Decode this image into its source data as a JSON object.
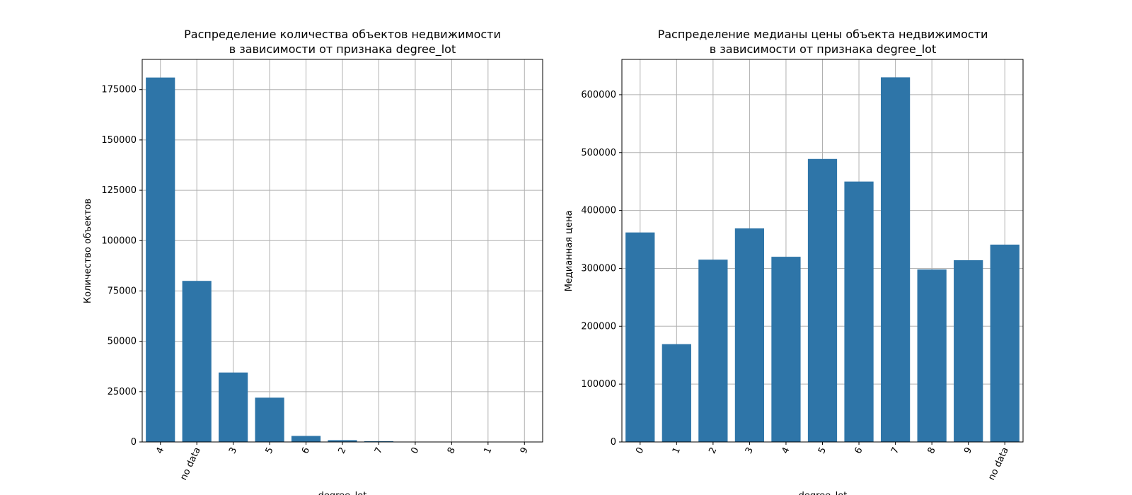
{
  "chart_data": [
    {
      "type": "bar",
      "title_line1": "Распределение количества объектов недвижимости",
      "title_line2": "в зависимости от признака degree_lot",
      "xlabel": "degree_lot",
      "ylabel": "Количество объектов",
      "categories": [
        "4",
        "no data",
        "3",
        "5",
        "6",
        "2",
        "7",
        "0",
        "8",
        "1",
        "9"
      ],
      "values": [
        181000,
        80000,
        34500,
        22000,
        3000,
        900,
        400,
        100,
        60,
        40,
        20
      ],
      "ylim": [
        0,
        190000
      ],
      "yticks": [
        0,
        25000,
        50000,
        75000,
        100000,
        125000,
        150000,
        175000
      ],
      "color": "#2e75a8",
      "grid": true
    },
    {
      "type": "bar",
      "title_line1": "Распределение медианы цены объекта недвижимости",
      "title_line2": "в зависимости от признака degree_lot",
      "xlabel": "degree_lot",
      "ylabel": "Медианная цена",
      "categories": [
        "0",
        "1",
        "2",
        "3",
        "4",
        "5",
        "6",
        "7",
        "8",
        "9",
        "no data"
      ],
      "values": [
        362000,
        169000,
        315000,
        369000,
        320000,
        489000,
        450000,
        630000,
        298000,
        314000,
        341000
      ],
      "ylim": [
        0,
        661000
      ],
      "yticks": [
        0,
        100000,
        200000,
        300000,
        400000,
        500000,
        600000
      ],
      "color": "#2e75a8",
      "grid": true
    }
  ]
}
